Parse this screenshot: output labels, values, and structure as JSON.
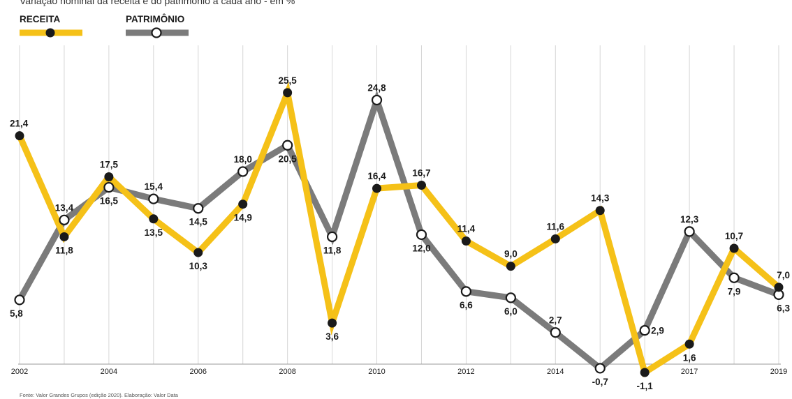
{
  "chart_data": {
    "type": "line",
    "subtitle": "Variação nominal da receita e do patrimônio a cada ano - em %",
    "x": [
      "2002",
      "2003",
      "2004",
      "2005",
      "2006",
      "2007",
      "2008",
      "2009",
      "2010",
      "2011",
      "2012",
      "2013",
      "2014",
      "2015",
      "2016",
      "2017",
      "2018",
      "2019"
    ],
    "tick_labels": [
      "2002",
      "2004",
      "2006",
      "2008",
      "2010",
      "2012",
      "2014",
      "2017",
      "2019"
    ],
    "series": [
      {
        "name": "RECEITA",
        "color": "#f5c118",
        "marker": "filled-dot",
        "values": [
          21.4,
          11.8,
          17.5,
          13.5,
          10.3,
          14.9,
          25.5,
          3.6,
          16.4,
          16.7,
          11.4,
          9.0,
          11.6,
          14.3,
          -1.1,
          1.6,
          10.7,
          7.0
        ],
        "labels": [
          "21,4",
          "11,8",
          "17,5",
          "13,5",
          "10,3",
          "14,9",
          "25,5",
          "3,6",
          "16,4",
          "16,7",
          "11,4",
          "9,0",
          "11,6",
          "14,3",
          "-1,1",
          "1,6",
          "10,7",
          "7,0"
        ]
      },
      {
        "name": "PATRIMÔNIO",
        "color": "#7b7b7b",
        "marker": "open-circle",
        "values": [
          5.8,
          13.4,
          16.5,
          15.4,
          14.5,
          18.0,
          20.5,
          11.8,
          24.8,
          12.0,
          6.6,
          6.0,
          2.7,
          -0.7,
          2.9,
          12.3,
          7.9,
          6.3
        ],
        "labels": [
          "5,8",
          "13,4",
          "16,5",
          "15,4",
          "14,5",
          "18,0",
          "20,5",
          "11,8",
          "24,8",
          "12,0",
          "6,6",
          "6,0",
          "2,7",
          "-0,7",
          "2,9",
          "12,3",
          "7,9",
          "6,3"
        ]
      }
    ],
    "ylim": [
      -1.5,
      30
    ],
    "grid": "vertical",
    "legend": "top-left",
    "source": "Fonte: Valor Grandes Grupos (edição 2020). Elaboração: Valor Data"
  }
}
